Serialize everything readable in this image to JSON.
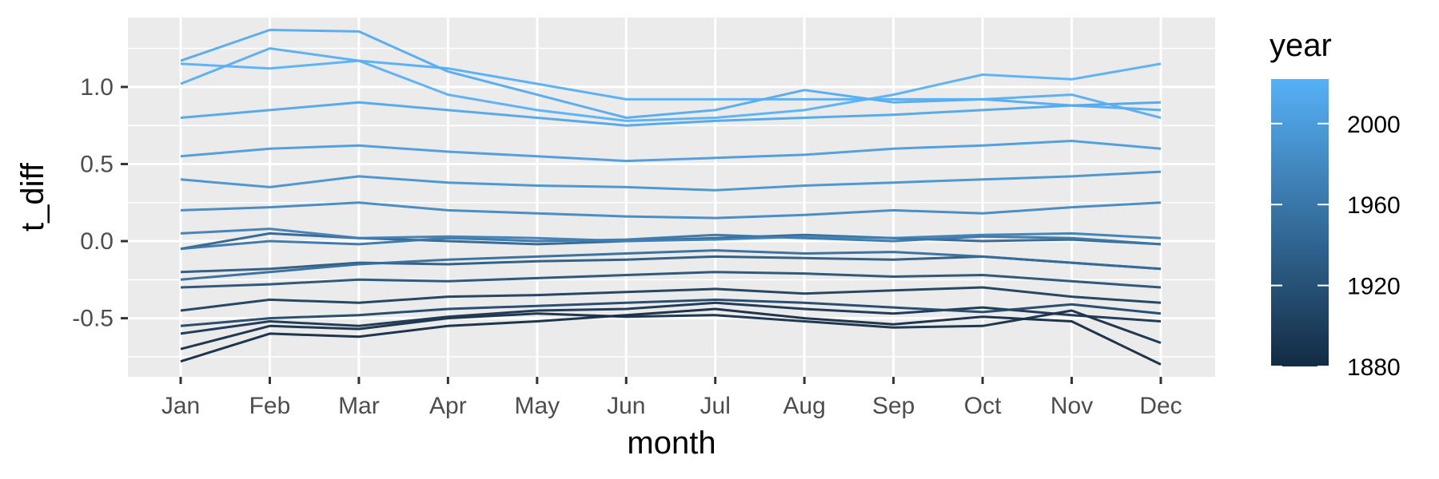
{
  "chart_data": {
    "type": "line",
    "xlabel": "month",
    "ylabel": "t_diff",
    "categories": [
      "Jan",
      "Feb",
      "Mar",
      "Apr",
      "May",
      "Jun",
      "Jul",
      "Aug",
      "Sep",
      "Oct",
      "Nov",
      "Dec"
    ],
    "ylim": [
      -0.88,
      1.45
    ],
    "yticks": [
      -0.5,
      0.0,
      0.5,
      1.0
    ],
    "ytick_labels": [
      "-0.5",
      "0.0",
      "0.5",
      "1.0"
    ],
    "grid": true,
    "color_by": "year",
    "year_range": [
      1880,
      2022
    ],
    "series": [
      {
        "year": 1880,
        "values": [
          -0.78,
          -0.6,
          -0.62,
          -0.55,
          -0.52,
          -0.48,
          -0.44,
          -0.5,
          -0.54,
          -0.49,
          -0.52,
          -0.8
        ]
      },
      {
        "year": 1884,
        "values": [
          -0.7,
          -0.55,
          -0.57,
          -0.5,
          -0.47,
          -0.49,
          -0.48,
          -0.52,
          -0.56,
          -0.55,
          -0.45,
          -0.66
        ]
      },
      {
        "year": 1890,
        "values": [
          -0.6,
          -0.52,
          -0.55,
          -0.49,
          -0.45,
          -0.44,
          -0.4,
          -0.44,
          -0.47,
          -0.43,
          -0.48,
          -0.52
        ]
      },
      {
        "year": 1900,
        "values": [
          -0.45,
          -0.38,
          -0.4,
          -0.36,
          -0.35,
          -0.33,
          -0.31,
          -0.34,
          -0.32,
          -0.3,
          -0.36,
          -0.4
        ]
      },
      {
        "year": 1910,
        "values": [
          -0.55,
          -0.5,
          -0.48,
          -0.44,
          -0.42,
          -0.4,
          -0.38,
          -0.4,
          -0.43,
          -0.46,
          -0.41,
          -0.47
        ]
      },
      {
        "year": 1920,
        "values": [
          -0.3,
          -0.28,
          -0.25,
          -0.26,
          -0.24,
          -0.22,
          -0.2,
          -0.21,
          -0.23,
          -0.22,
          -0.26,
          -0.3
        ]
      },
      {
        "year": 1930,
        "values": [
          -0.2,
          -0.18,
          -0.14,
          -0.15,
          -0.13,
          -0.12,
          -0.1,
          -0.11,
          -0.12,
          -0.1,
          -0.14,
          -0.18
        ]
      },
      {
        "year": 1940,
        "values": [
          -0.05,
          0.05,
          0.02,
          0.0,
          -0.02,
          0.0,
          0.02,
          0.04,
          0.02,
          0.0,
          0.01,
          -0.02
        ]
      },
      {
        "year": 1950,
        "values": [
          -0.25,
          -0.2,
          -0.15,
          -0.12,
          -0.1,
          -0.08,
          -0.06,
          -0.08,
          -0.07,
          -0.1,
          -0.14,
          -0.18
        ]
      },
      {
        "year": 1960,
        "values": [
          -0.05,
          0.0,
          -0.02,
          0.02,
          0.0,
          0.01,
          0.04,
          0.02,
          0.0,
          0.03,
          0.02,
          -0.02
        ]
      },
      {
        "year": 1970,
        "values": [
          0.05,
          0.08,
          0.02,
          0.03,
          0.02,
          0.0,
          0.01,
          0.03,
          0.02,
          0.04,
          0.05,
          0.02
        ]
      },
      {
        "year": 1980,
        "values": [
          0.2,
          0.22,
          0.25,
          0.2,
          0.18,
          0.16,
          0.15,
          0.17,
          0.2,
          0.18,
          0.22,
          0.25
        ]
      },
      {
        "year": 1990,
        "values": [
          0.4,
          0.35,
          0.42,
          0.38,
          0.36,
          0.35,
          0.33,
          0.36,
          0.38,
          0.4,
          0.42,
          0.45
        ]
      },
      {
        "year": 2000,
        "values": [
          0.55,
          0.6,
          0.62,
          0.58,
          0.55,
          0.52,
          0.54,
          0.56,
          0.6,
          0.62,
          0.65,
          0.6
        ]
      },
      {
        "year": 2010,
        "values": [
          0.8,
          0.85,
          0.9,
          0.85,
          0.8,
          0.75,
          0.78,
          0.8,
          0.82,
          0.85,
          0.88,
          0.9
        ]
      },
      {
        "year": 2016,
        "values": [
          1.17,
          1.37,
          1.36,
          1.1,
          0.95,
          0.8,
          0.85,
          0.98,
          0.9,
          0.92,
          0.88,
          0.85
        ]
      },
      {
        "year": 2020,
        "values": [
          1.02,
          1.25,
          1.17,
          1.12,
          1.02,
          0.92,
          0.92,
          0.92,
          0.92,
          0.92,
          0.95,
          0.8
        ]
      },
      {
        "year": 2022,
        "values": [
          1.15,
          1.12,
          1.17,
          0.95,
          0.85,
          0.78,
          0.8,
          0.85,
          0.95,
          1.08,
          1.05,
          1.15
        ]
      }
    ]
  },
  "legend": {
    "title": "year",
    "breaks": [
      1880,
      1920,
      1960,
      2000
    ],
    "labels": [
      "1880",
      "1920",
      "1960",
      "2000"
    ],
    "color_low": "#132b43",
    "color_high": "#56b1f7"
  }
}
